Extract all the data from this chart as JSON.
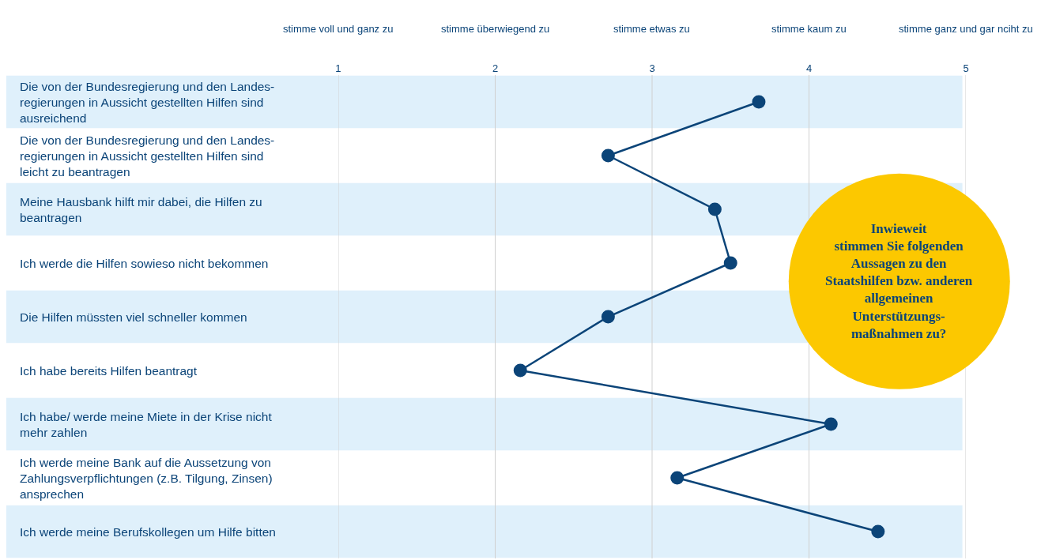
{
  "chart_data": {
    "type": "line",
    "orientation": "horizontal",
    "categories": [
      "Die von der Bundesregierung und den Landes-\nregierungen in Aussicht gestellten Hilfen sind\nausreichend",
      "Die von der Bundesregierung und den Landes-\nregierungen in Aussicht gestellten Hilfen sind\nleicht zu beantragen",
      "Meine Hausbank hilft mir dabei, die Hilfen zu\nbeantragen",
      "Ich werde die Hilfen sowieso nicht bekommen",
      "Die Hilfen müssten viel schneller kommen",
      "Ich habe bereits Hilfen beantragt",
      "Ich habe/ werde meine Miete in der Krise nicht\nmehr zahlen",
      "Ich werde meine Bank auf die Aussetzung von\nZahlungsverpflichtungen (z.B. Tilgung, Zinsen)\nansprechen",
      "Ich werde meine Berufskollegen um Hilfe bitten"
    ],
    "series": [
      {
        "color": "#0b4478",
        "values": [
          3.68,
          2.72,
          3.4,
          3.5,
          2.72,
          2.16,
          4.14,
          3.16,
          4.44
        ]
      }
    ],
    "xlim": [
      1,
      5
    ],
    "xticks": [
      1,
      2,
      3,
      4,
      5
    ],
    "bands": [
      {
        "axis": "y",
        "from": "Die von der Bundesregierung und den Landes-\nregierungen in Aussicht gestellten Hilfen sind\nausreichend",
        "to": "Die von der Bundesregierung und den Landes-\nregierungen in Aussicht gestellten Hilfen sind\nausreichend",
        "color": "#dff0fb"
      },
      {
        "axis": "y",
        "from": "Meine Hausbank hilft mir dabei, die Hilfen zu\nbeantragen",
        "to": "Meine Hausbank hilft mir dabei, die Hilfen zu\nbeantragen",
        "color": "#dff0fb"
      },
      {
        "axis": "y",
        "from": "Die Hilfen müssten viel schneller kommen",
        "to": "Die Hilfen müssten viel schneller kommen",
        "color": "#dff0fb"
      },
      {
        "axis": "y",
        "from": "Ich habe/ werde meine Miete in der Krise nicht\nmehr zahlen",
        "to": "Ich habe/ werde meine Miete in der Krise nicht\nmehr zahlen",
        "color": "#dff0fb"
      },
      {
        "axis": "y",
        "from": "Ich werde meine Berufskollegen um Hilfe bitten",
        "to": "Ich werde meine Berufskollegen um Hilfe bitten",
        "color": "#dff0fb"
      }
    ],
    "grid": "x",
    "marker": "circle",
    "line_style": "solid",
    "annotations": [
      "stimme voll und ganz zu",
      "stimme überwiegend zu",
      "stimme etwas zu",
      "stimme kaum zu",
      "stimme ganz und gar nciht zu",
      "Inwieweit\nstimmen Sie folgenden\nAussagen zu den\nStaatshilfen bzw. anderen\nallgemeinen\nUnterstützungs-\nmaßnahmen zu?"
    ]
  }
}
